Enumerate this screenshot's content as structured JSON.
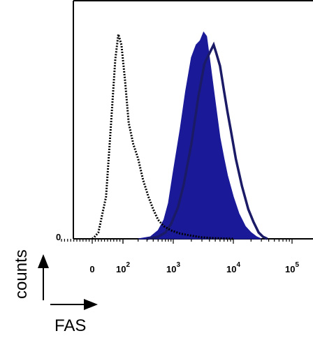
{
  "chart_data": {
    "type": "area",
    "title": "",
    "xlabel": "FAS",
    "ylabel": "counts",
    "xscale": "biexponential",
    "xlim": [
      0,
      100000
    ],
    "ylim": [
      0,
      100
    ],
    "y_tick_labels": [
      "0"
    ],
    "x_tick_labels": [
      {
        "base": "0",
        "exp": ""
      },
      {
        "base": "10",
        "exp": "2"
      },
      {
        "base": "10",
        "exp": "3"
      },
      {
        "base": "10",
        "exp": "4"
      },
      {
        "base": "10",
        "exp": "5"
      }
    ],
    "grid": false,
    "legend": "none",
    "series": [
      {
        "style": "dotted outline",
        "color": "#000000",
        "x": [
          0,
          5,
          20,
          45,
          60,
          75,
          85,
          95,
          110,
          130,
          160,
          200,
          250,
          320,
          400,
          500,
          650,
          900,
          1300,
          2000,
          3000,
          5000,
          10000
        ],
        "y": [
          0,
          0.5,
          3,
          20,
          52,
          85,
          97,
          92,
          75,
          55,
          45,
          38,
          28,
          20,
          14,
          9,
          6,
          4,
          2.5,
          1.5,
          0.7,
          0.3,
          0
        ]
      },
      {
        "style": "filled",
        "color": "#1a1a99",
        "x": [
          200,
          350,
          500,
          650,
          800,
          1000,
          1300,
          1600,
          2000,
          2400,
          2800,
          3200,
          3600,
          4000,
          5000,
          6000,
          7000,
          8000,
          10000,
          12500,
          16000,
          20000,
          25000,
          30000
        ],
        "y": [
          0,
          1,
          4,
          9,
          17,
          32,
          52,
          70,
          86,
          92,
          94,
          98,
          96,
          86,
          65,
          48,
          38,
          30,
          20,
          12,
          6,
          3,
          1,
          0
        ]
      },
      {
        "style": "solid outline",
        "color": "#1a1a66",
        "x": [
          300,
          500,
          700,
          900,
          1200,
          1500,
          2000,
          2600,
          3300,
          4000,
          4700,
          5200,
          6000,
          7000,
          8000,
          9000,
          11000,
          14000,
          18000,
          22000,
          27000,
          32000,
          38000
        ],
        "y": [
          0,
          1,
          3,
          7,
          15,
          26,
          45,
          67,
          83,
          88,
          92,
          88,
          82,
          70,
          60,
          52,
          38,
          25,
          14,
          8,
          3,
          1,
          0
        ]
      }
    ]
  }
}
